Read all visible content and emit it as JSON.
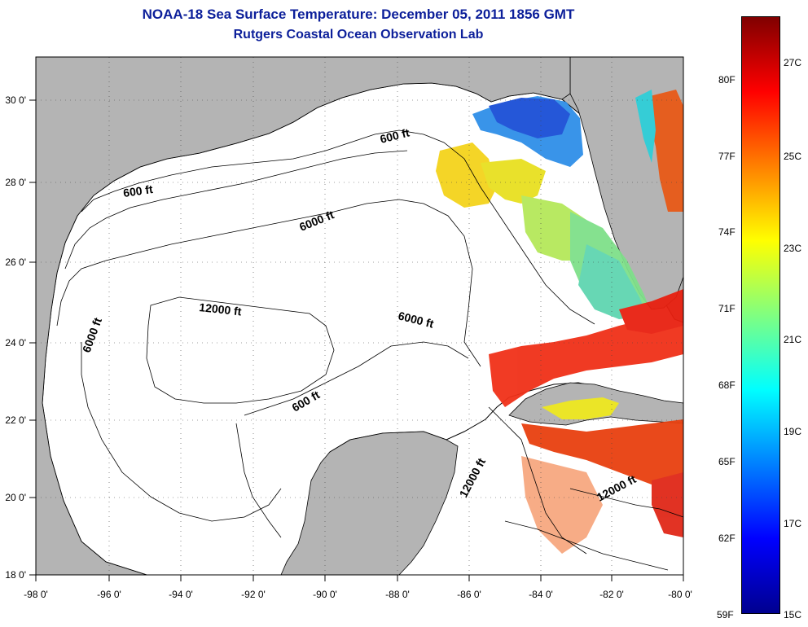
{
  "header": {
    "title": "NOAA-18 Sea Surface Temperature:  December 05, 2011 1856 GMT",
    "subtitle": "Rutgers Coastal Ocean Observation Lab"
  },
  "map": {
    "lon_labels": [
      "-98 0'",
      "-96 0'",
      "-94 0'",
      "-92 0'",
      "-90 0'",
      "-88 0'",
      "-86 0'",
      "-84 0'",
      "-82 0'",
      "-80 0'"
    ],
    "lat_labels": [
      "30 0'",
      "28 0'",
      "26 0'",
      "24 0'",
      "22 0'",
      "20 0'",
      "18 0'"
    ],
    "contour_labels": [
      "600 ft",
      "600 ft",
      "6000 ft",
      "12000 ft",
      "6000 ft",
      "6000 ft",
      "600 ft",
      "12000 ft",
      "12000 ft"
    ],
    "land_color": "#b4b4b4",
    "ocean_nodata_color": "#ffffff"
  },
  "colorbar": {
    "fahrenheit_labels": [
      "80F",
      "77F",
      "74F",
      "71F",
      "68F",
      "65F",
      "62F",
      "59F"
    ],
    "celsius_labels": [
      "27C",
      "25C",
      "23C",
      "21C",
      "19C",
      "17C",
      "15C"
    ],
    "range_c": [
      15,
      28
    ]
  }
}
